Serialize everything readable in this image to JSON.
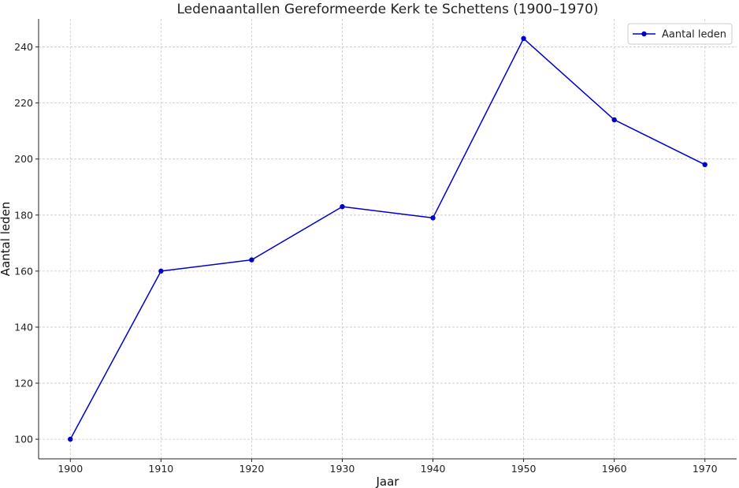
{
  "chart_data": {
    "type": "line",
    "title": "Ledenaantallen Gereformeerde Kerk te Schettens (1900–1970)",
    "xlabel": "Jaar",
    "ylabel": "Aantal leden",
    "x": [
      1900,
      1910,
      1920,
      1930,
      1940,
      1950,
      1960,
      1970
    ],
    "series": [
      {
        "name": "Aantal leden",
        "values": [
          100,
          160,
          164,
          183,
          179,
          243,
          214,
          198
        ],
        "color": "#0000cc",
        "marker": "circle"
      }
    ],
    "xticks": [
      1900,
      1910,
      1920,
      1930,
      1940,
      1950,
      1960,
      1970
    ],
    "yticks": [
      100,
      120,
      140,
      160,
      180,
      200,
      220,
      240
    ],
    "xlim": [
      1896.5,
      1973.5
    ],
    "ylim": [
      93.0,
      250.0
    ],
    "grid": true,
    "legend_position": "top-right"
  }
}
